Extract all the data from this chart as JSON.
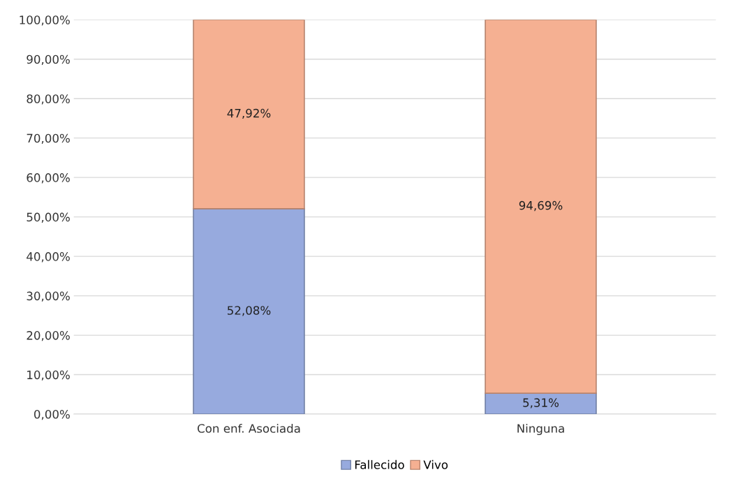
{
  "chart_data": {
    "type": "bar",
    "stacked": true,
    "categories": [
      "Con enf. Asociada",
      "Ninguna"
    ],
    "series": [
      {
        "name": "Fallecido",
        "color": "#97aade",
        "values": [
          52.08,
          5.31
        ],
        "value_labels": [
          "52,08%",
          "5,31%"
        ]
      },
      {
        "name": "Vivo",
        "color": "#f5b092",
        "values": [
          47.92,
          94.69
        ],
        "value_labels": [
          "47,92%",
          "94,69%"
        ]
      }
    ],
    "ylim": [
      0,
      100
    ],
    "yticks": [
      {
        "value": 0,
        "label": "0,00%"
      },
      {
        "value": 10,
        "label": "10,00%"
      },
      {
        "value": 20,
        "label": "20,00%"
      },
      {
        "value": 30,
        "label": "30,00%"
      },
      {
        "value": 40,
        "label": "40,00%"
      },
      {
        "value": 50,
        "label": "50,00%"
      },
      {
        "value": 60,
        "label": "60,00%"
      },
      {
        "value": 70,
        "label": "70,00%"
      },
      {
        "value": 80,
        "label": "80,00%"
      },
      {
        "value": 90,
        "label": "90,00%"
      },
      {
        "value": 100,
        "label": "100,00%"
      }
    ],
    "grid": "y",
    "legend": "bottom"
  }
}
